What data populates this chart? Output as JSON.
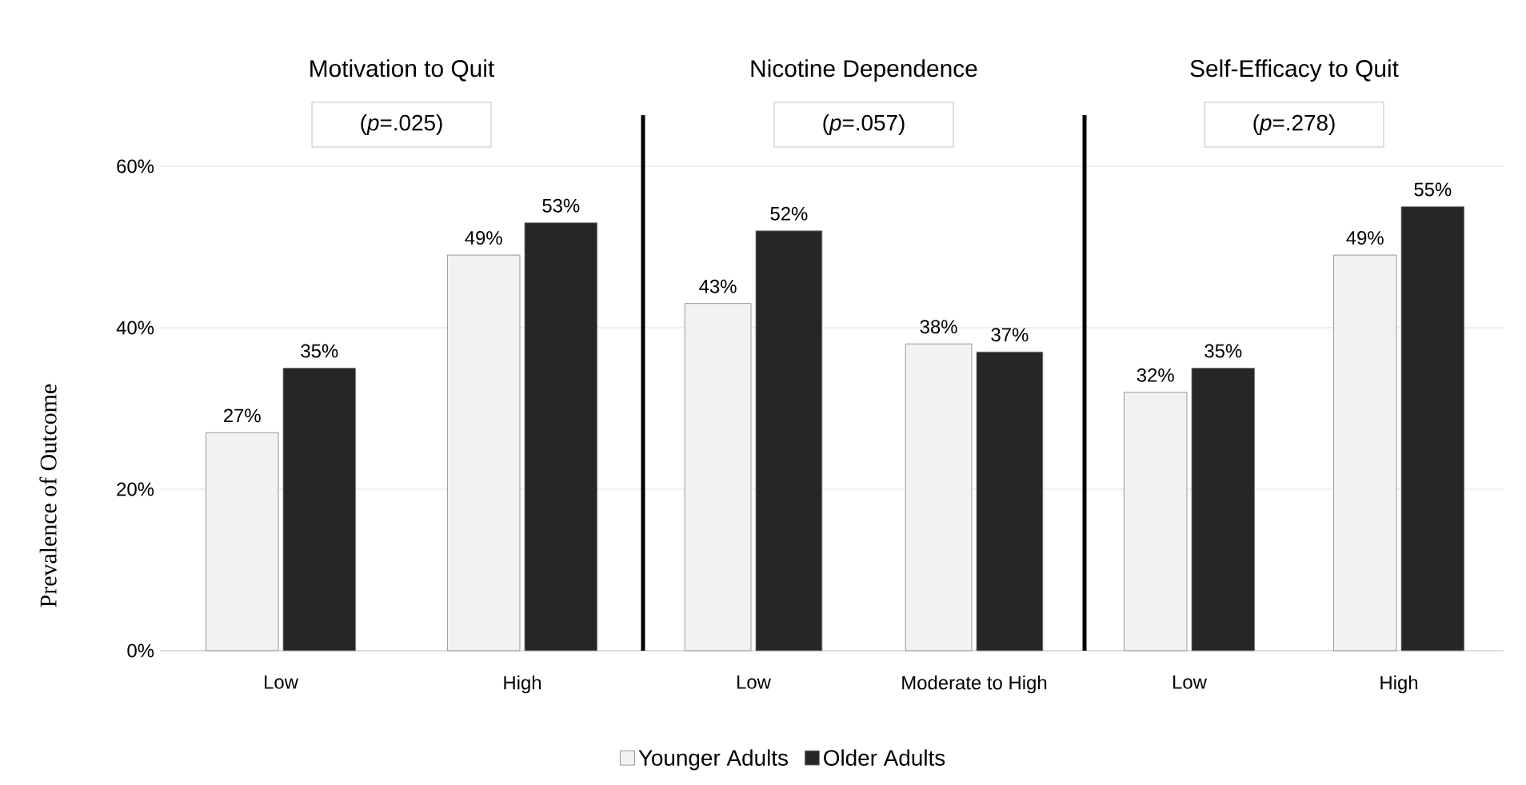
{
  "chart_data": [
    {
      "type": "bar",
      "title": "Motivation to Quit",
      "annotations": [
        "(*p*=.025)"
      ],
      "ylabel": "Prevalence of Outcome",
      "categories": [
        "Low",
        "High"
      ],
      "series": [
        {
          "color": "#f2f2f2",
          "values": [
            27,
            49
          ],
          "value_labels": [
            "27%",
            "49%"
          ]
        },
        {
          "color": "#262626",
          "values": [
            35,
            53
          ],
          "value_labels": [
            "35%",
            "53%"
          ]
        }
      ],
      "ylim": [
        0,
        60
      ],
      "yticks": [
        {
          "value": 0,
          "label": "0%"
        },
        {
          "value": 20,
          "label": "20%"
        },
        {
          "value": 40,
          "label": "40%"
        },
        {
          "value": 60,
          "label": "60%"
        }
      ],
      "grid": "y"
    },
    {
      "type": "bar",
      "title": "Nicotine Dependence",
      "annotations": [
        "(*p*=.057)"
      ],
      "categories": [
        "Low",
        "Moderate to High"
      ],
      "series": [
        {
          "name": "Younger Adults",
          "color": "#f2f2f2",
          "values": [
            43,
            38
          ],
          "value_labels": [
            "43%",
            "38%"
          ]
        },
        {
          "name": "Older Adults",
          "color": "#262626",
          "values": [
            52,
            37
          ],
          "value_labels": [
            "52%",
            "37%"
          ]
        }
      ],
      "ylim": [
        0,
        60
      ],
      "yticks": [
        {
          "value": 0,
          "label": null
        },
        {
          "value": 20,
          "label": null
        },
        {
          "value": 40,
          "label": null
        },
        {
          "value": 60,
          "label": null
        }
      ],
      "grid": "y",
      "legend": "bottom",
      "tick_labels": "x"
    },
    {
      "type": "bar",
      "title": "Self-Efficacy to Quit",
      "annotations": [
        "(*p*=.278)"
      ],
      "categories": [
        "Low",
        "High"
      ],
      "series": [
        {
          "color": "#f2f2f2",
          "values": [
            32,
            49
          ],
          "value_labels": [
            "32%",
            "49%"
          ]
        },
        {
          "color": "#262626",
          "values": [
            35,
            55
          ],
          "value_labels": [
            "35%",
            "55%"
          ]
        }
      ],
      "ylim": [
        0,
        60
      ],
      "yticks": [
        {
          "value": 0,
          "label": null
        },
        {
          "value": 20,
          "label": null
        },
        {
          "value": 40,
          "label": null
        },
        {
          "value": 60,
          "label": null
        }
      ],
      "grid": "y",
      "tick_labels": "x"
    }
  ]
}
